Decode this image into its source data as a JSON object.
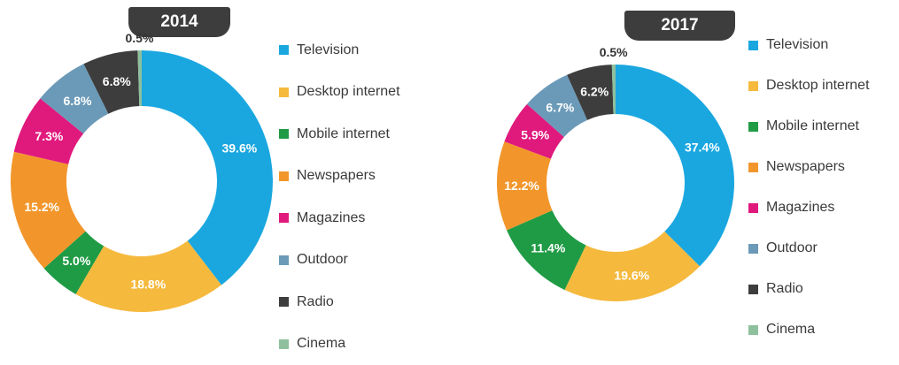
{
  "colors": {
    "Television": "#1aa7e0",
    "Desktop internet": "#f5b93d",
    "Mobile internet": "#1f9b45",
    "Newspapers": "#f2962b",
    "Magazines": "#e0197d",
    "Outdoor": "#6b9ab8",
    "Radio": "#3d3d3d",
    "Cinema": "#8ec09d"
  },
  "chart_data": [
    {
      "type": "pie",
      "title": "2014",
      "categories": [
        "Television",
        "Desktop internet",
        "Mobile internet",
        "Newspapers",
        "Magazines",
        "Outdoor",
        "Radio",
        "Cinema"
      ],
      "values": [
        39.6,
        18.8,
        5.0,
        15.2,
        7.3,
        6.8,
        6.8,
        0.5
      ],
      "labels": [
        "39.6%",
        "18.8%",
        "5.0%",
        "15.2%",
        "7.3%",
        "6.8%",
        "6.8%",
        "0.5%"
      ],
      "legend_position": "right"
    },
    {
      "type": "pie",
      "title": "2017",
      "categories": [
        "Television",
        "Desktop internet",
        "Mobile internet",
        "Newspapers",
        "Magazines",
        "Outdoor",
        "Radio",
        "Cinema"
      ],
      "values": [
        37.4,
        19.6,
        11.4,
        12.2,
        5.9,
        6.7,
        6.2,
        0.5
      ],
      "labels": [
        "37.4%",
        "19.6%",
        "11.4%",
        "12.2%",
        "5.9%",
        "6.7%",
        "6.2%",
        "0.5%"
      ],
      "legend_position": "right"
    }
  ]
}
